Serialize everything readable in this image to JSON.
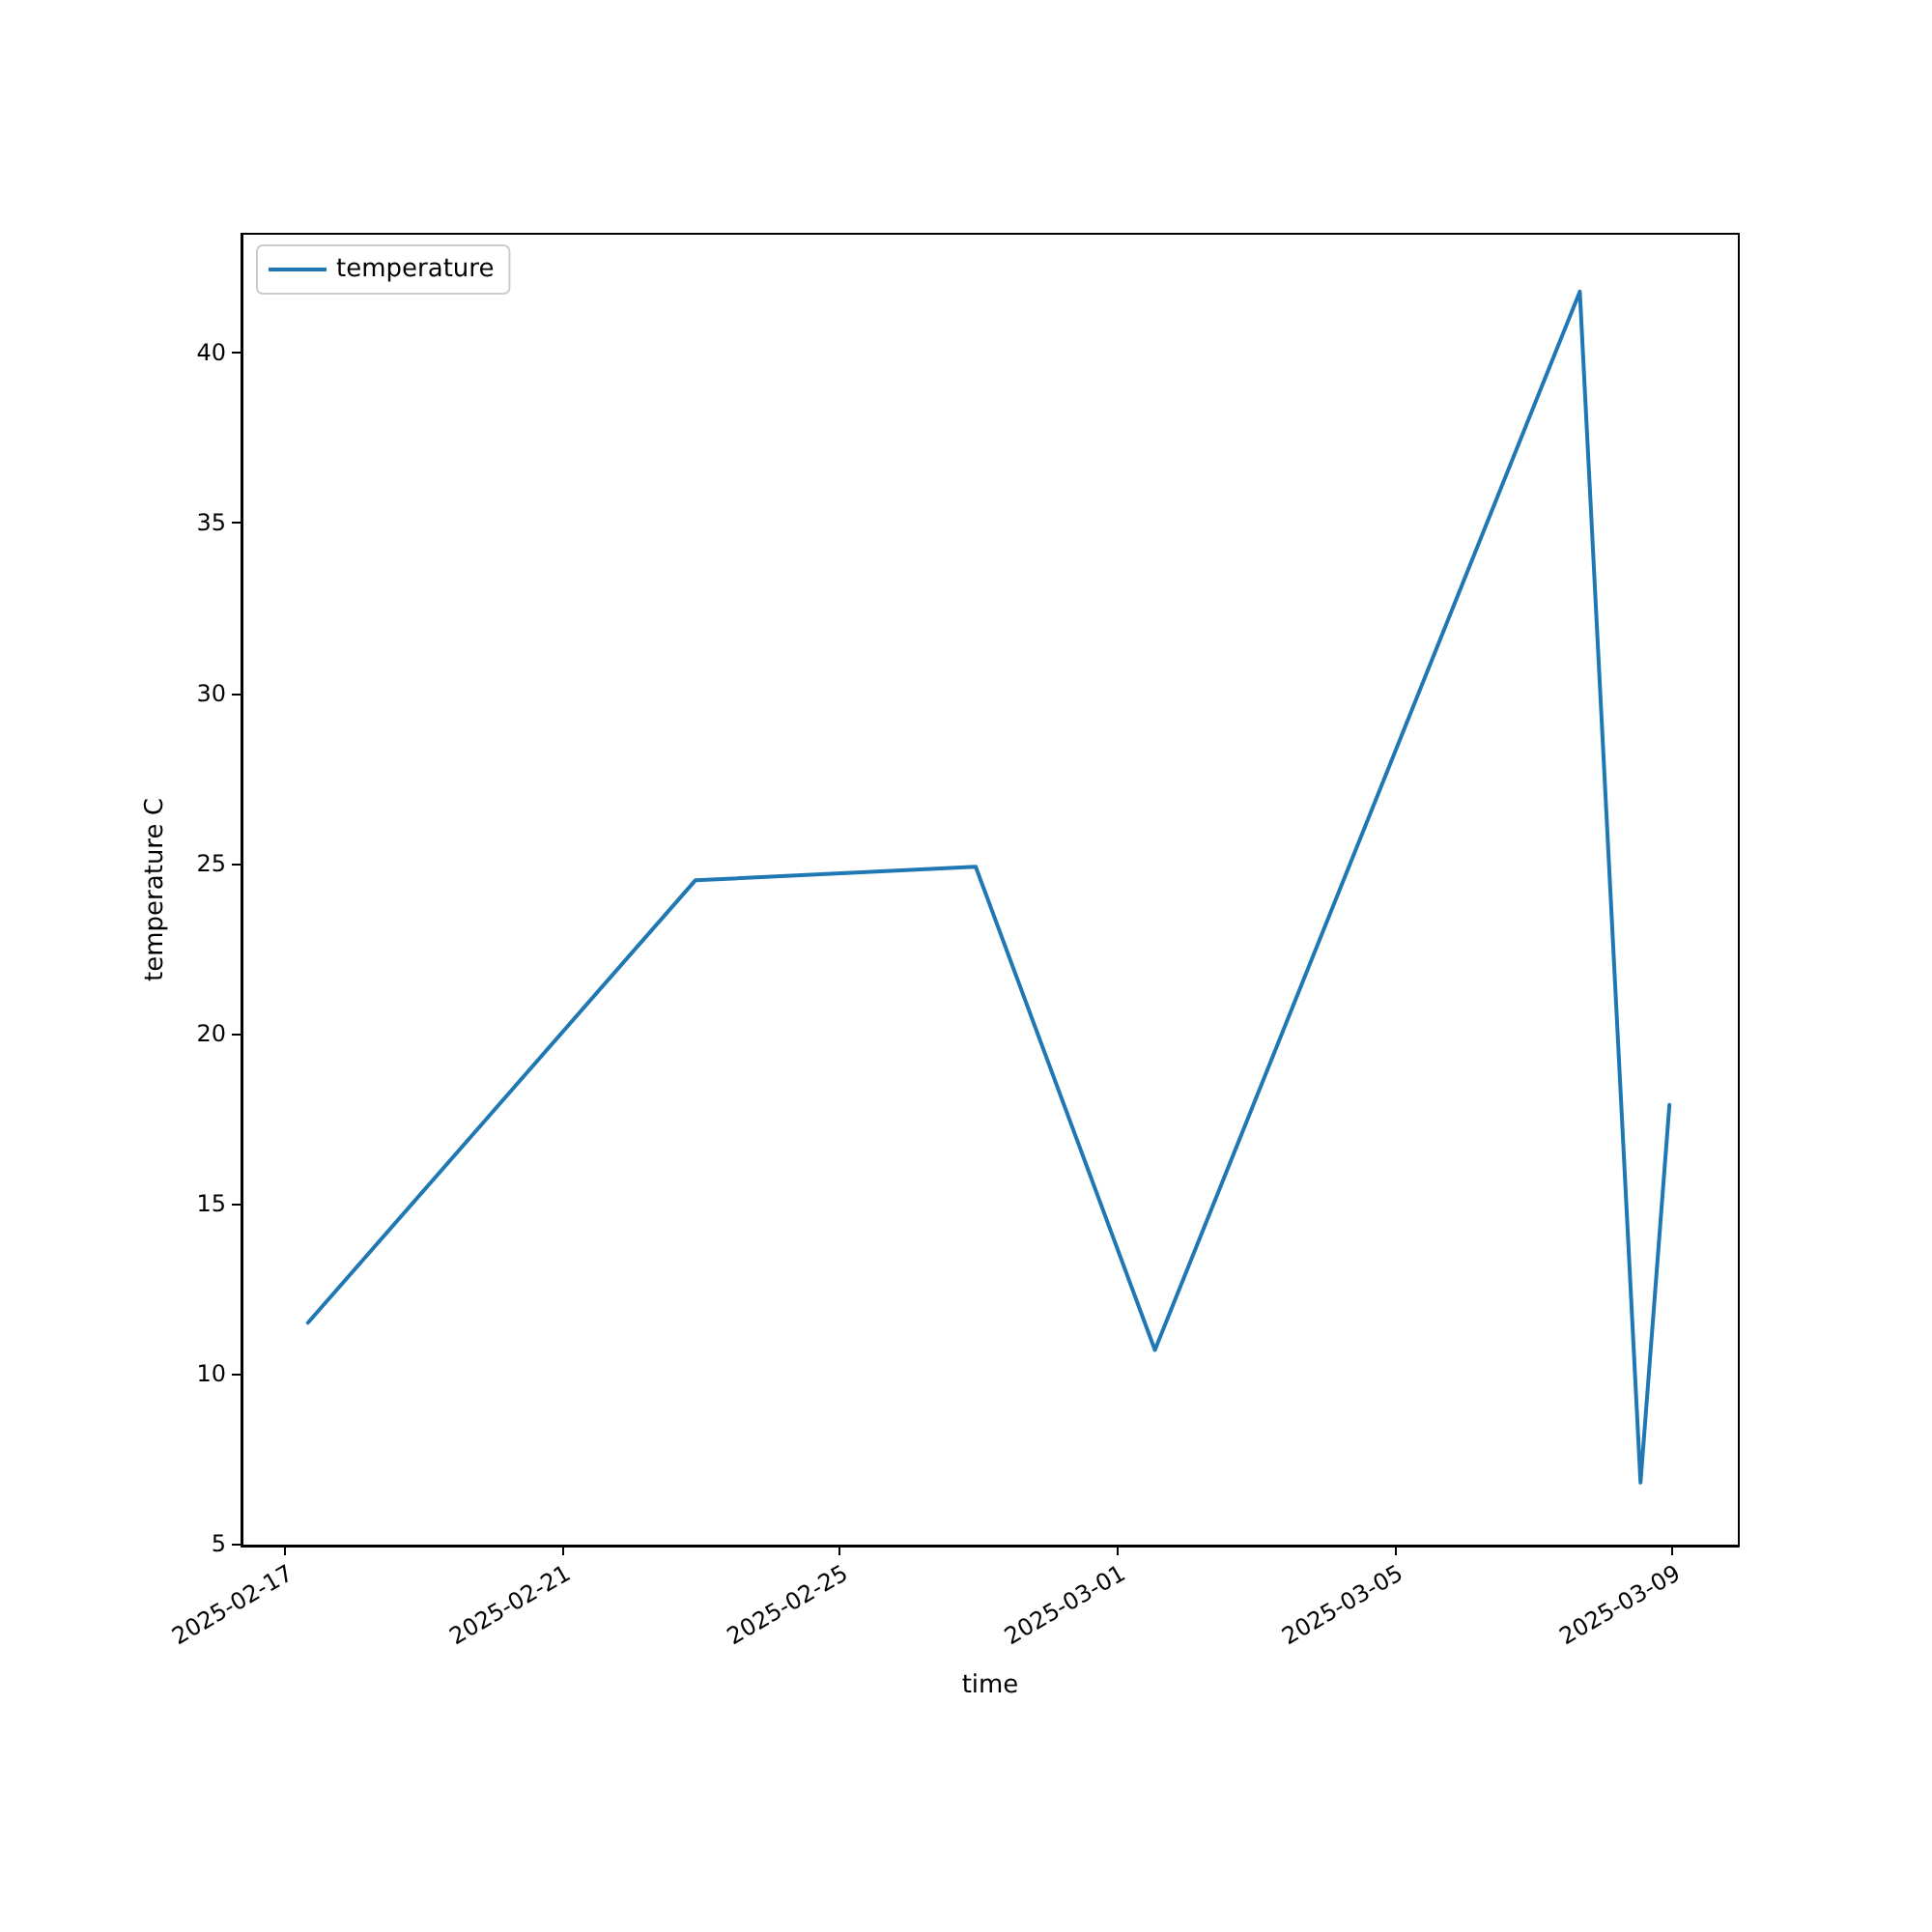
{
  "chart_data": {
    "type": "line",
    "xlabel": "time",
    "ylabel": "temperature C",
    "x": [
      "2025-02-17T08:00",
      "2025-02-22T22:00",
      "2025-02-26T23:00",
      "2025-03-01T13:00",
      "2025-03-07T16:00",
      "2025-03-08T13:00",
      "2025-03-08T23:00"
    ],
    "series": [
      {
        "name": "temperature",
        "color": "#1f77b4",
        "values": [
          11.5,
          24.5,
          24.9,
          10.7,
          41.8,
          6.8,
          17.9
        ]
      }
    ],
    "xlim": [
      "2025-02-16T09:00",
      "2025-03-09T23:00"
    ],
    "xticks": [
      "2025-02-17",
      "2025-02-21",
      "2025-02-25",
      "2025-03-01",
      "2025-03-05",
      "2025-03-09"
    ],
    "ylim": [
      4.95,
      43.5
    ],
    "yticks": [
      5,
      10,
      15,
      20,
      25,
      30,
      35,
      40
    ],
    "legend": "top left",
    "grid": false,
    "marker": "none",
    "line_style": "solid"
  }
}
